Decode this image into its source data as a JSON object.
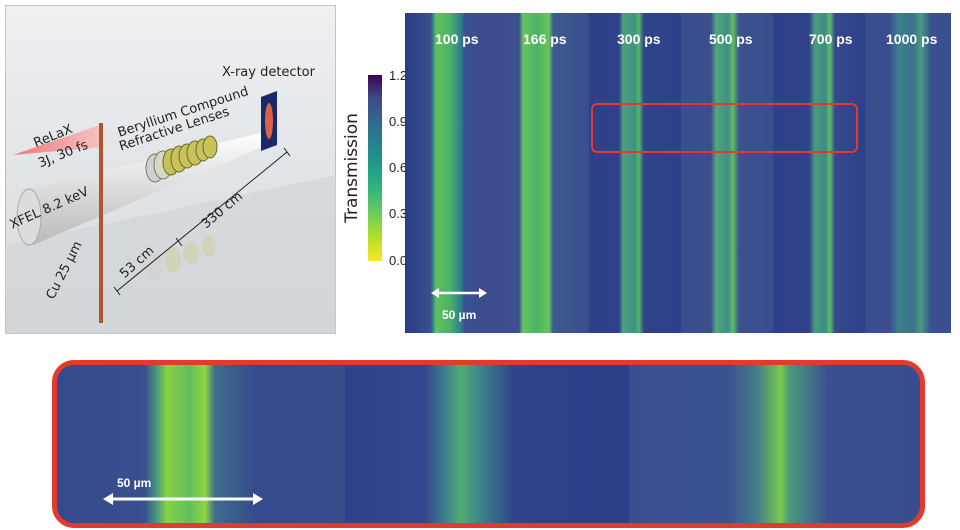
{
  "setup": {
    "laser": "ReLaX",
    "laser_params": "3J, 30 fs",
    "xfel": "XFEL 8.2 keV",
    "target": "Cu 25 µm",
    "lens_line1": "Beryllium Compound",
    "lens_line2": "Refractive Lenses",
    "detector": "X-ray detector",
    "dist_short": "53 cm",
    "dist_long": "330 cm"
  },
  "series": {
    "frames": [
      "100 ps",
      "166 ps",
      "300 ps",
      "500 ps",
      "700 ps",
      "1000 ps"
    ],
    "scale_bar": "50 µm"
  },
  "colorbar": {
    "title": "Transmission",
    "ticks": [
      "1.2",
      "0.9",
      "0.6",
      "0.3",
      "0.0"
    ],
    "colormap": "viridis (reversed)"
  },
  "zoom": {
    "scale_bar": "50 µm"
  },
  "colors": {
    "highlight": "#e23b2e",
    "background_blue": "#3a4f8e",
    "feature_green": "#7fd34e"
  }
}
